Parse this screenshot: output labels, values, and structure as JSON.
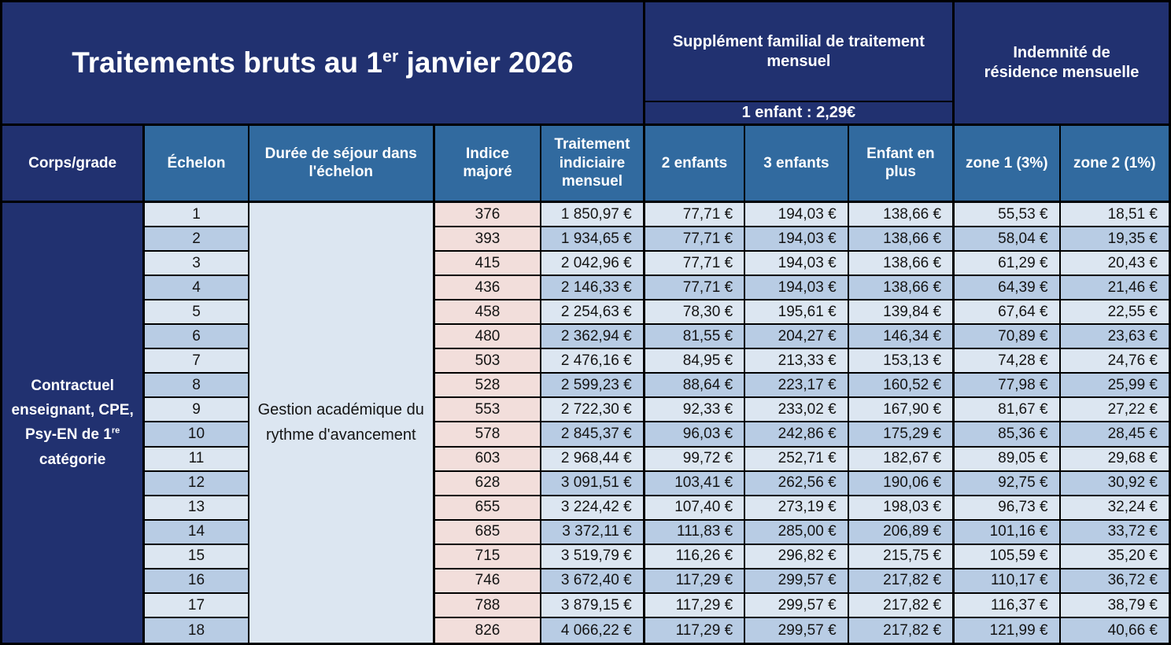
{
  "title": {
    "prefix": "Traitements bruts au 1",
    "sup": "er",
    "suffix": " janvier 2026"
  },
  "top": {
    "supplement_title": "Supplément familial de traitement mensuel",
    "supplement_note": "1 enfant : 2,29€",
    "residence_title": "Indemnité de résidence mensuelle"
  },
  "columns": {
    "corps": "Corps/grade",
    "echelon": "Échelon",
    "duree": "Durée de séjour dans l'échelon",
    "indice": "Indice majoré",
    "traitement": "Traitement indiciaire mensuel",
    "enfants2": "2 enfants",
    "enfants3": "3 enfants",
    "enfant_plus": "Enfant en plus",
    "zone1": "zone 1 (3%)",
    "zone2": "zone 2 (1%)"
  },
  "corps": {
    "prefix": "Contractuel enseignant, CPE, Psy-EN de 1",
    "sup": "re",
    "suffix": " catégorie"
  },
  "duree_cell": "Gestion académique du rythme d'avancement",
  "rows": [
    {
      "echelon": "1",
      "indice": "376",
      "traitement": "1 850,97 €",
      "enfants2": "77,71 €",
      "enfants3": "194,03 €",
      "enfant_plus": "138,66 €",
      "zone1": "55,53 €",
      "zone2": "18,51 €"
    },
    {
      "echelon": "2",
      "indice": "393",
      "traitement": "1 934,65 €",
      "enfants2": "77,71 €",
      "enfants3": "194,03 €",
      "enfant_plus": "138,66 €",
      "zone1": "58,04 €",
      "zone2": "19,35 €"
    },
    {
      "echelon": "3",
      "indice": "415",
      "traitement": "2 042,96 €",
      "enfants2": "77,71 €",
      "enfants3": "194,03 €",
      "enfant_plus": "138,66 €",
      "zone1": "61,29 €",
      "zone2": "20,43 €"
    },
    {
      "echelon": "4",
      "indice": "436",
      "traitement": "2 146,33 €",
      "enfants2": "77,71 €",
      "enfants3": "194,03 €",
      "enfant_plus": "138,66 €",
      "zone1": "64,39 €",
      "zone2": "21,46 €"
    },
    {
      "echelon": "5",
      "indice": "458",
      "traitement": "2 254,63 €",
      "enfants2": "78,30 €",
      "enfants3": "195,61 €",
      "enfant_plus": "139,84 €",
      "zone1": "67,64 €",
      "zone2": "22,55 €"
    },
    {
      "echelon": "6",
      "indice": "480",
      "traitement": "2 362,94 €",
      "enfants2": "81,55 €",
      "enfants3": "204,27 €",
      "enfant_plus": "146,34 €",
      "zone1": "70,89 €",
      "zone2": "23,63 €"
    },
    {
      "echelon": "7",
      "indice": "503",
      "traitement": "2 476,16 €",
      "enfants2": "84,95 €",
      "enfants3": "213,33 €",
      "enfant_plus": "153,13 €",
      "zone1": "74,28 €",
      "zone2": "24,76 €"
    },
    {
      "echelon": "8",
      "indice": "528",
      "traitement": "2 599,23 €",
      "enfants2": "88,64 €",
      "enfants3": "223,17 €",
      "enfant_plus": "160,52 €",
      "zone1": "77,98 €",
      "zone2": "25,99 €"
    },
    {
      "echelon": "9",
      "indice": "553",
      "traitement": "2 722,30 €",
      "enfants2": "92,33 €",
      "enfants3": "233,02 €",
      "enfant_plus": "167,90 €",
      "zone1": "81,67 €",
      "zone2": "27,22 €"
    },
    {
      "echelon": "10",
      "indice": "578",
      "traitement": "2 845,37 €",
      "enfants2": "96,03 €",
      "enfants3": "242,86 €",
      "enfant_plus": "175,29 €",
      "zone1": "85,36 €",
      "zone2": "28,45 €"
    },
    {
      "echelon": "11",
      "indice": "603",
      "traitement": "2 968,44 €",
      "enfants2": "99,72 €",
      "enfants3": "252,71 €",
      "enfant_plus": "182,67 €",
      "zone1": "89,05 €",
      "zone2": "29,68 €"
    },
    {
      "echelon": "12",
      "indice": "628",
      "traitement": "3 091,51 €",
      "enfants2": "103,41 €",
      "enfants3": "262,56 €",
      "enfant_plus": "190,06 €",
      "zone1": "92,75 €",
      "zone2": "30,92 €"
    },
    {
      "echelon": "13",
      "indice": "655",
      "traitement": "3 224,42 €",
      "enfants2": "107,40 €",
      "enfants3": "273,19 €",
      "enfant_plus": "198,03 €",
      "zone1": "96,73 €",
      "zone2": "32,24 €"
    },
    {
      "echelon": "14",
      "indice": "685",
      "traitement": "3 372,11 €",
      "enfants2": "111,83 €",
      "enfants3": "285,00 €",
      "enfant_plus": "206,89 €",
      "zone1": "101,16 €",
      "zone2": "33,72 €"
    },
    {
      "echelon": "15",
      "indice": "715",
      "traitement": "3 519,79 €",
      "enfants2": "116,26 €",
      "enfants3": "296,82 €",
      "enfant_plus": "215,75 €",
      "zone1": "105,59 €",
      "zone2": "35,20 €"
    },
    {
      "echelon": "16",
      "indice": "746",
      "traitement": "3 672,40 €",
      "enfants2": "117,29 €",
      "enfants3": "299,57 €",
      "enfant_plus": "217,82 €",
      "zone1": "110,17 €",
      "zone2": "36,72 €"
    },
    {
      "echelon": "17",
      "indice": "788",
      "traitement": "3 879,15 €",
      "enfants2": "117,29 €",
      "enfants3": "299,57 €",
      "enfant_plus": "217,82 €",
      "zone1": "116,37 €",
      "zone2": "38,79 €"
    },
    {
      "echelon": "18",
      "indice": "826",
      "traitement": "4 066,22 €",
      "enfants2": "117,29 €",
      "enfants3": "299,57 €",
      "enfant_plus": "217,82 €",
      "zone1": "121,99 €",
      "zone2": "40,66 €"
    }
  ],
  "colors": {
    "navy": "#213170",
    "steel": "#316A9F",
    "row-light": "#DCE6F1",
    "row-mid": "#B8CCE4",
    "indice-pink": "#F2DEDB",
    "grid-line": "#000000"
  }
}
